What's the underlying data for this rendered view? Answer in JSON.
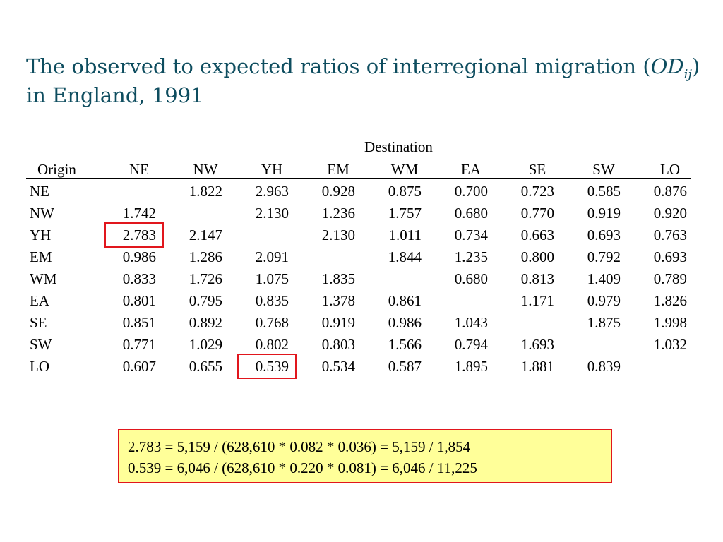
{
  "title": {
    "text": "The observed to expected ratios of interregional migration (",
    "od": "OD",
    "sub": "ij",
    "close": ")",
    "line2": "in England, 1991"
  },
  "table": {
    "destination_label": "Destination",
    "origin_label": "Origin",
    "columns": [
      "NE",
      "NW",
      "YH",
      "EM",
      "WM",
      "EA",
      "SE",
      "SW",
      "LO"
    ],
    "rows": [
      {
        "label": "NE",
        "values": [
          "",
          "1.822",
          "2.963",
          "0.928",
          "0.875",
          "0.700",
          "0.723",
          "0.585",
          "0.876"
        ]
      },
      {
        "label": "NW",
        "values": [
          "1.742",
          "",
          "2.130",
          "1.236",
          "1.757",
          "0.680",
          "0.770",
          "0.919",
          "0.920"
        ]
      },
      {
        "label": "YH",
        "values": [
          "2.783",
          "2.147",
          "",
          "2.130",
          "1.011",
          "0.734",
          "0.663",
          "0.693",
          "0.763"
        ]
      },
      {
        "label": "EM",
        "values": [
          "0.986",
          "1.286",
          "2.091",
          "",
          "1.844",
          "1.235",
          "0.800",
          "0.792",
          "0.693"
        ]
      },
      {
        "label": "WM",
        "values": [
          "0.833",
          "1.726",
          "1.075",
          "1.835",
          "",
          "0.680",
          "0.813",
          "1.409",
          "0.789"
        ]
      },
      {
        "label": "EA",
        "values": [
          "0.801",
          "0.795",
          "0.835",
          "1.378",
          "0.861",
          "",
          "1.171",
          "0.979",
          "1.826"
        ]
      },
      {
        "label": "SE",
        "values": [
          "0.851",
          "0.892",
          "0.768",
          "0.919",
          "0.986",
          "1.043",
          "",
          "1.875",
          "1.998"
        ]
      },
      {
        "label": "SW",
        "values": [
          "0.771",
          "1.029",
          "0.802",
          "0.803",
          "1.566",
          "0.794",
          "1.693",
          "",
          "1.032"
        ]
      },
      {
        "label": "LO",
        "values": [
          "0.607",
          "0.655",
          "0.539",
          "0.534",
          "0.587",
          "1.895",
          "1.881",
          "0.839",
          ""
        ]
      }
    ],
    "highlighted_cells": [
      {
        "row": "YH",
        "column": "NE"
      },
      {
        "row": "LO",
        "column": "YH"
      }
    ]
  },
  "formula_box": {
    "line1": "2.783 = 5,159 / (628,610 * 0.082 * 0.036) = 5,159 / 1,854",
    "line2": "0.539 = 6,046 / (628,610 * 0.220 * 0.081) = 6,046 / 11,225"
  },
  "colors": {
    "title": "#0e4d5f",
    "highlight_border": "#e1161d",
    "formula_background": "#ffff99"
  }
}
